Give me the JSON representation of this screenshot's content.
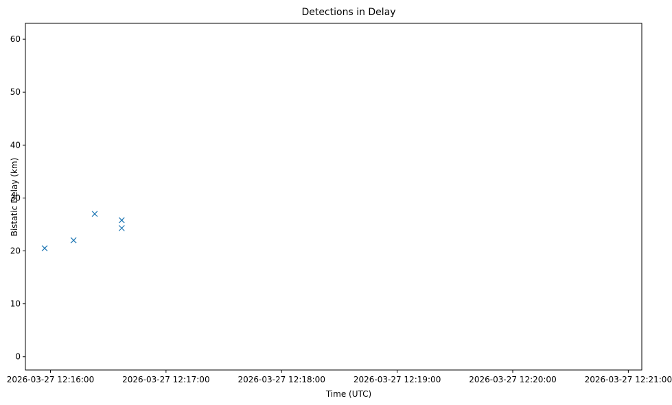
{
  "chart_data": {
    "type": "scatter",
    "title": "Detections in Delay",
    "xlabel": "Time (UTC)",
    "ylabel": "Bistatic Delay (km)",
    "marker": "x",
    "color": "#1f77b4",
    "grid": false,
    "xlim": [
      "2026-03-27 12:15:47",
      "2026-03-27 12:21:07"
    ],
    "ylim": [
      -2.5,
      63
    ],
    "xticks": [
      "2026-03-27 12:16:00",
      "2026-03-27 12:17:00",
      "2026-03-27 12:18:00",
      "2026-03-27 12:19:00",
      "2026-03-27 12:20:00",
      "2026-03-27 12:21:00"
    ],
    "yticks": [
      0,
      10,
      20,
      30,
      40,
      50,
      60
    ],
    "tracks": [
      {
        "name": "",
        "x": [
          "12:15:57",
          "12:16:12",
          "12:16:37"
        ],
        "y": [
          20.5,
          22.0,
          24.3
        ],
        "values": [
          20.5,
          22.0,
          24.3
        ]
      },
      {
        "name": "",
        "x": [
          "12:16:23",
          "12:16:37"
        ],
        "y": [
          27.0,
          25.8
        ],
        "values": [
          27.0,
          25.8
        ]
      }
    ]
  }
}
